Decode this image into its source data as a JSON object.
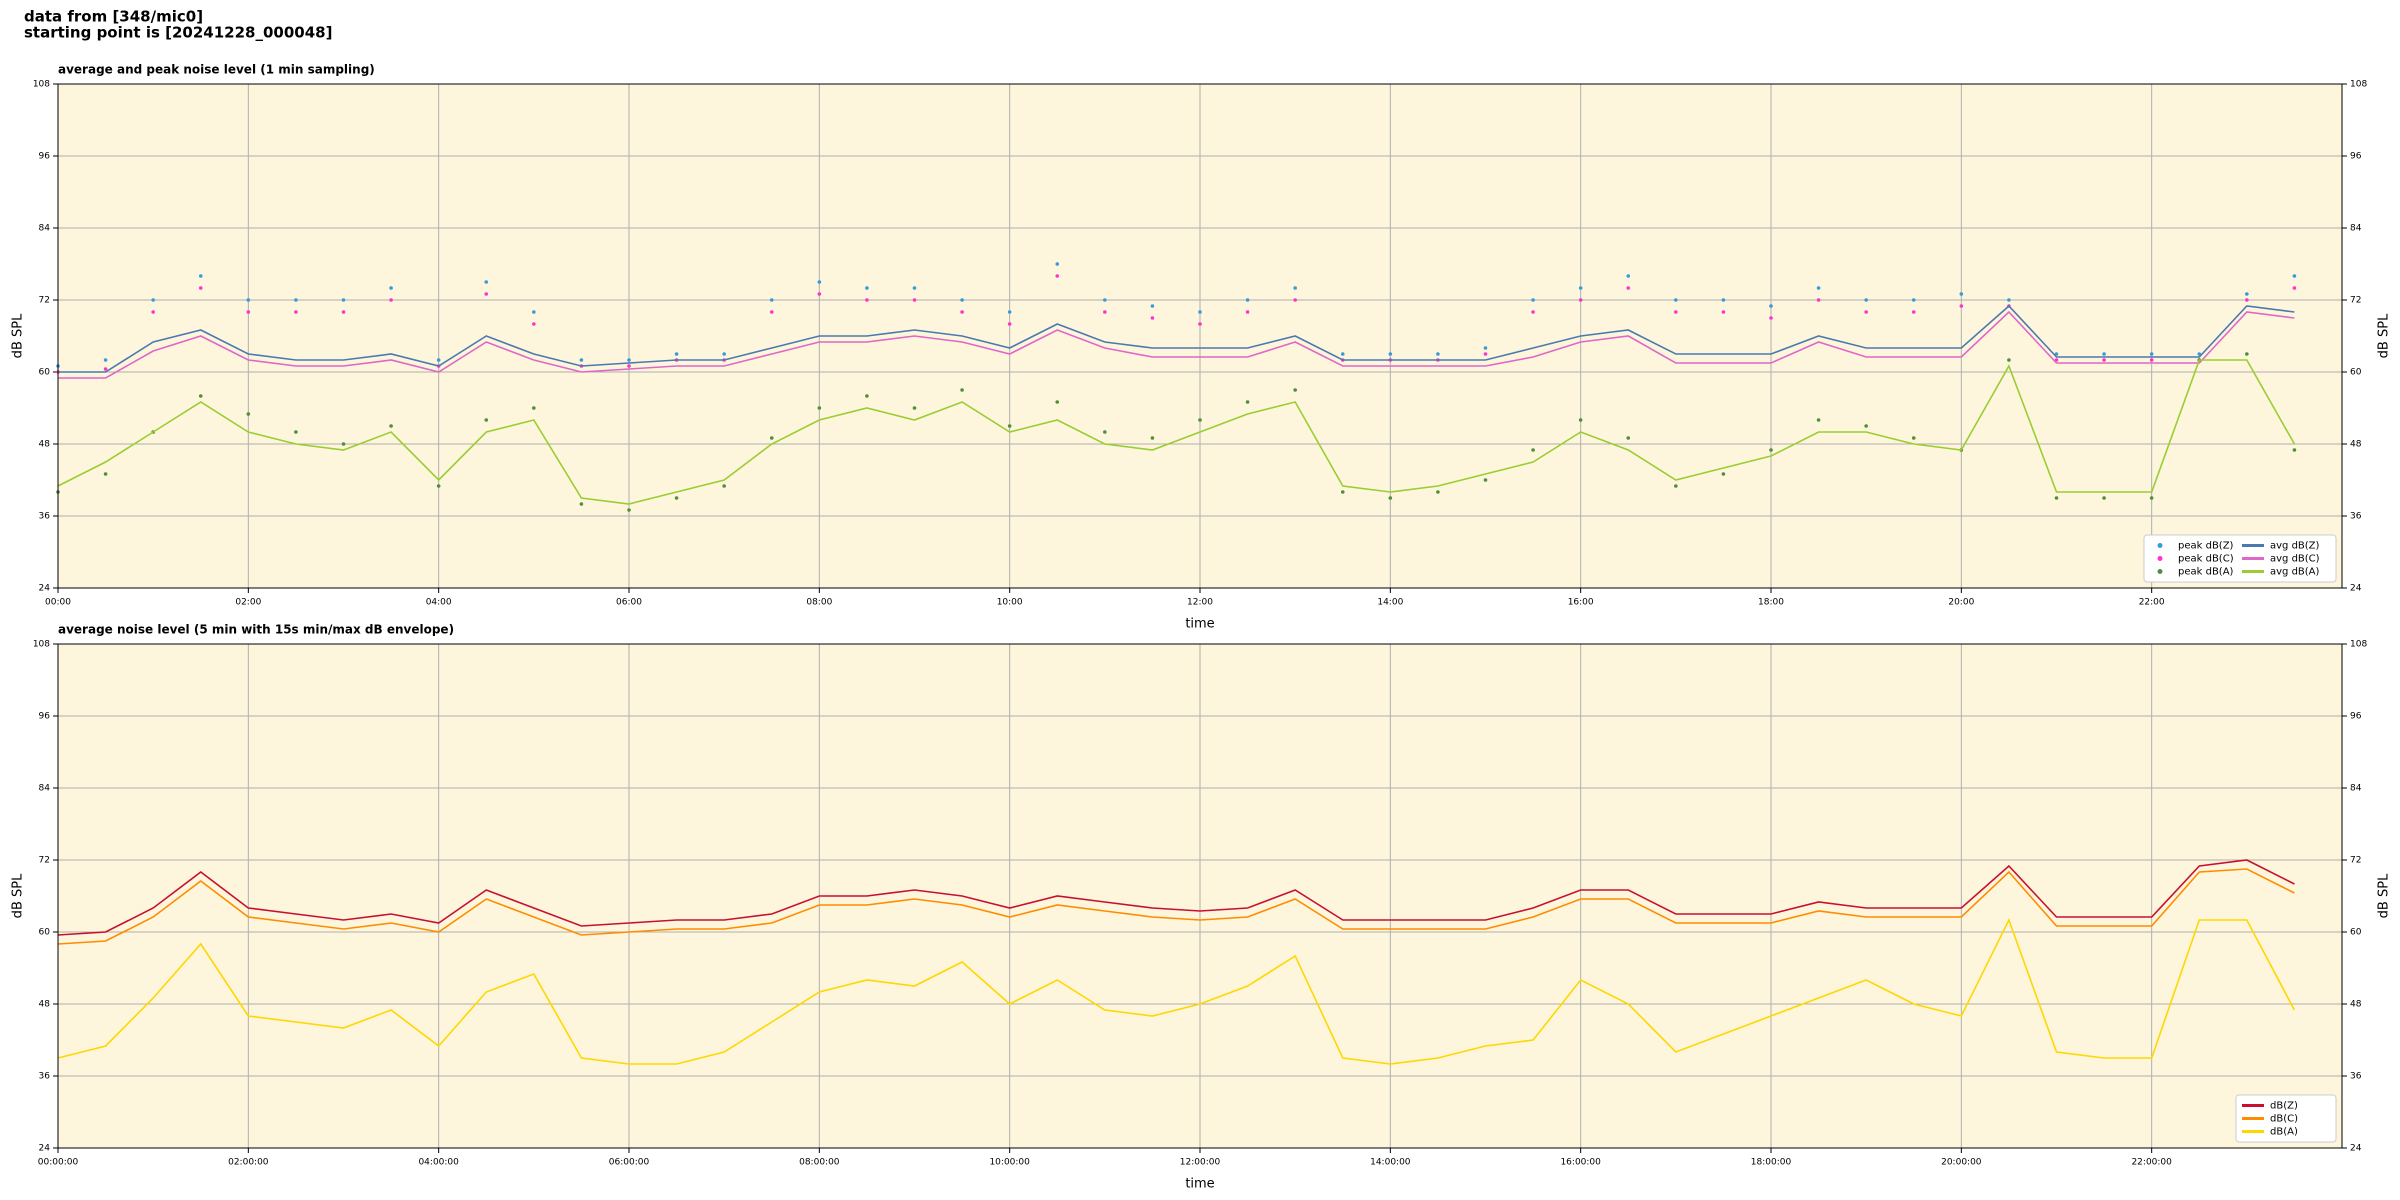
{
  "header": [
    "data from [348/mic0]",
    "starting point is [20241228_000048]"
  ],
  "chart_data": [
    {
      "type": "line",
      "title": "average and peak noise level (1 min sampling)",
      "xlabel": "time",
      "ylabel": "dB SPL",
      "xlim": [
        0,
        24
      ],
      "ylim": [
        24,
        108
      ],
      "yticks": [
        24,
        36,
        48,
        60,
        72,
        84,
        96,
        108
      ],
      "xticks": [
        {
          "value": 0,
          "label": "00:00"
        },
        {
          "value": 2,
          "label": "02:00"
        },
        {
          "value": 4,
          "label": "04:00"
        },
        {
          "value": 6,
          "label": "06:00"
        },
        {
          "value": 8,
          "label": "08:00"
        },
        {
          "value": 10,
          "label": "10:00"
        },
        {
          "value": 12,
          "label": "12:00"
        },
        {
          "value": 14,
          "label": "14:00"
        },
        {
          "value": 16,
          "label": "16:00"
        },
        {
          "value": 18,
          "label": "18:00"
        },
        {
          "value": 20,
          "label": "20:00"
        },
        {
          "value": 22,
          "label": "22:00"
        }
      ],
      "grid": true,
      "legend": "lower right",
      "legend_columns": 2,
      "background": "#fdf6dc",
      "x": [
        0,
        0.5,
        1,
        1.5,
        2,
        2.5,
        3,
        3.5,
        4,
        4.5,
        5,
        5.5,
        6,
        6.5,
        7,
        7.5,
        8,
        8.5,
        9,
        9.5,
        10,
        10.5,
        11,
        11.5,
        12,
        12.5,
        13,
        13.5,
        14,
        14.5,
        15,
        15.5,
        16,
        16.5,
        17,
        17.5,
        18,
        18.5,
        19,
        19.5,
        20,
        20.5,
        21,
        21.5,
        22,
        22.5,
        23,
        23.5
      ],
      "series": [
        {
          "name": "peak dB(Z)",
          "kind": "scatter",
          "color": "#3a9ad9",
          "values": [
            61,
            62,
            72,
            76,
            72,
            72,
            72,
            74,
            62,
            75,
            70,
            62,
            62,
            63,
            63,
            72,
            75,
            74,
            74,
            72,
            70,
            78,
            72,
            71,
            70,
            72,
            74,
            63,
            63,
            63,
            64,
            72,
            74,
            76,
            72,
            72,
            71,
            74,
            72,
            72,
            73,
            72,
            63,
            63,
            63,
            63,
            73,
            76
          ]
        },
        {
          "name": "peak dB(C)",
          "kind": "scatter",
          "color": "#ff33cc",
          "values": [
            60,
            60.5,
            70,
            74,
            70,
            70,
            70,
            72,
            61,
            73,
            68,
            61,
            61,
            62,
            62,
            70,
            73,
            72,
            72,
            70,
            68,
            76,
            70,
            69,
            68,
            70,
            72,
            62,
            62,
            62,
            63,
            70,
            72,
            74,
            70,
            70,
            69,
            72,
            70,
            70,
            71,
            71,
            62,
            62,
            62,
            62,
            72,
            74
          ]
        },
        {
          "name": "peak dB(A)",
          "kind": "scatter",
          "color": "#4f8f3a",
          "values": [
            40,
            43,
            50,
            56,
            53,
            50,
            48,
            51,
            41,
            52,
            54,
            38,
            37,
            39,
            41,
            49,
            54,
            56,
            54,
            57,
            51,
            55,
            50,
            49,
            52,
            55,
            57,
            40,
            39,
            40,
            42,
            47,
            52,
            49,
            41,
            43,
            47,
            52,
            51,
            49,
            47,
            62,
            39,
            39,
            39,
            62,
            63,
            47
          ]
        },
        {
          "name": "avg dB(Z)",
          "kind": "line",
          "color": "#4a79b0",
          "values": [
            60,
            60,
            65,
            67,
            63,
            62,
            62,
            63,
            61,
            66,
            63,
            61,
            61.5,
            62,
            62,
            64,
            66,
            66,
            67,
            66,
            64,
            68,
            65,
            64,
            64,
            64,
            66,
            62,
            62,
            62,
            62,
            64,
            66,
            67,
            63,
            63,
            63,
            66,
            64,
            64,
            64,
            71,
            62.5,
            62.5,
            62.5,
            62.5,
            71,
            70
          ]
        },
        {
          "name": "avg dB(C)",
          "kind": "line",
          "color": "#e066c8",
          "values": [
            59,
            59,
            63.5,
            66,
            62,
            61,
            61,
            62,
            60,
            65,
            62,
            60,
            60.5,
            61,
            61,
            63,
            65,
            65,
            66,
            65,
            63,
            67,
            64,
            62.5,
            62.5,
            62.5,
            65,
            61,
            61,
            61,
            61,
            62.5,
            65,
            66,
            61.5,
            61.5,
            61.5,
            65,
            62.5,
            62.5,
            62.5,
            70,
            61.5,
            61.5,
            61.5,
            61.5,
            70,
            69
          ]
        },
        {
          "name": "avg dB(A)",
          "kind": "line",
          "color": "#9acd32",
          "values": [
            41,
            45,
            50,
            55,
            50,
            48,
            47,
            50,
            42,
            50,
            52,
            39,
            38,
            40,
            42,
            48,
            52,
            54,
            52,
            55,
            50,
            52,
            48,
            47,
            50,
            53,
            55,
            41,
            40,
            41,
            43,
            45,
            50,
            47,
            42,
            44,
            46,
            50,
            50,
            48,
            47,
            61,
            40,
            40,
            40,
            62,
            62,
            48
          ]
        }
      ]
    },
    {
      "type": "line",
      "title": "average noise level (5 min with 15s min/max dB envelope)",
      "xlabel": "time",
      "ylabel": "dB SPL",
      "xlim": [
        0,
        24
      ],
      "ylim": [
        24,
        108
      ],
      "yticks": [
        24,
        36,
        48,
        60,
        72,
        84,
        96,
        108
      ],
      "xticks": [
        {
          "value": 0,
          "label": "00:00:00"
        },
        {
          "value": 2,
          "label": "02:00:00"
        },
        {
          "value": 4,
          "label": "04:00:00"
        },
        {
          "value": 6,
          "label": "06:00:00"
        },
        {
          "value": 8,
          "label": "08:00:00"
        },
        {
          "value": 10,
          "label": "10:00:00"
        },
        {
          "value": 12,
          "label": "12:00:00"
        },
        {
          "value": 14,
          "label": "14:00:00"
        },
        {
          "value": 16,
          "label": "16:00:00"
        },
        {
          "value": 18,
          "label": "18:00:00"
        },
        {
          "value": 20,
          "label": "20:00:00"
        },
        {
          "value": 22,
          "label": "22:00:00"
        }
      ],
      "grid": true,
      "legend": "lower right",
      "legend_columns": 1,
      "background": "#fdf6dc",
      "x": [
        0,
        0.5,
        1,
        1.5,
        2,
        2.5,
        3,
        3.5,
        4,
        4.5,
        5,
        5.5,
        6,
        6.5,
        7,
        7.5,
        8,
        8.5,
        9,
        9.5,
        10,
        10.5,
        11,
        11.5,
        12,
        12.5,
        13,
        13.5,
        14,
        14.5,
        15,
        15.5,
        16,
        16.5,
        17,
        17.5,
        18,
        18.5,
        19,
        19.5,
        20,
        20.5,
        21,
        21.5,
        22,
        22.5,
        23,
        23.5
      ],
      "series": [
        {
          "name": "dB(Z)",
          "kind": "line",
          "color": "#c8102e",
          "values": [
            59.5,
            60,
            64,
            70,
            64,
            63,
            62,
            63,
            61.5,
            67,
            64,
            61,
            61.5,
            62,
            62,
            63,
            66,
            66,
            67,
            66,
            64,
            66,
            65,
            64,
            63.5,
            64,
            67,
            62,
            62,
            62,
            62,
            64,
            67,
            67,
            63,
            63,
            63,
            65,
            64,
            64,
            64,
            71,
            62.5,
            62.5,
            62.5,
            71,
            72,
            68
          ]
        },
        {
          "name": "dB(C)",
          "kind": "line",
          "color": "#ff8c00",
          "values": [
            58,
            58.5,
            62.5,
            68.5,
            62.5,
            61.5,
            60.5,
            61.5,
            60,
            65.5,
            62.5,
            59.5,
            60,
            60.5,
            60.5,
            61.5,
            64.5,
            64.5,
            65.5,
            64.5,
            62.5,
            64.5,
            63.5,
            62.5,
            62,
            62.5,
            65.5,
            60.5,
            60.5,
            60.5,
            60.5,
            62.5,
            65.5,
            65.5,
            61.5,
            61.5,
            61.5,
            63.5,
            62.5,
            62.5,
            62.5,
            70,
            61,
            61,
            61,
            70,
            70.5,
            66.5
          ]
        },
        {
          "name": "dB(A)",
          "kind": "line",
          "color": "#ffd700",
          "values": [
            39,
            41,
            49,
            58,
            46,
            45,
            44,
            47,
            41,
            50,
            53,
            39,
            38,
            38,
            40,
            45,
            50,
            52,
            51,
            55,
            48,
            52,
            47,
            46,
            48,
            51,
            56,
            39,
            38,
            39,
            41,
            42,
            52,
            48,
            40,
            43,
            46,
            49,
            52,
            48,
            46,
            62,
            40,
            39,
            39,
            62,
            62,
            47
          ]
        }
      ]
    }
  ]
}
